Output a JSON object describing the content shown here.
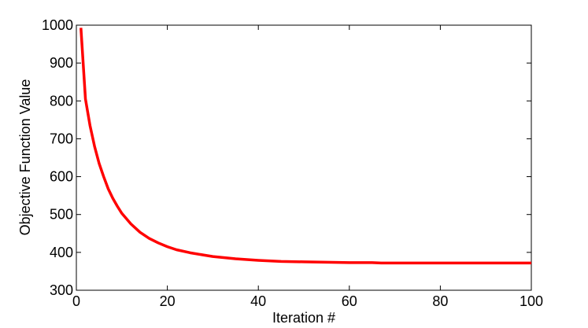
{
  "chart_data": {
    "type": "line",
    "xlabel": "Iteration #",
    "ylabel": "Objective Function Value",
    "x": [
      1,
      2,
      3,
      4,
      5,
      6,
      7,
      8,
      9,
      10,
      12,
      14,
      16,
      18,
      20,
      22,
      25,
      28,
      30,
      35,
      40,
      45,
      50,
      55,
      60,
      65,
      67,
      70,
      80,
      90,
      100
    ],
    "series": [
      {
        "color": "#ff0000",
        "values": [
          993,
          805,
          735,
          680,
          635,
          600,
          568,
          543,
          522,
          503,
          475,
          453,
          437,
          425,
          415,
          407,
          399,
          393,
          389,
          383,
          379,
          376,
          375,
          374,
          373,
          373,
          372,
          372,
          372,
          372,
          372
        ]
      }
    ],
    "xlim": [
      0,
      100
    ],
    "xticks": [
      0,
      20,
      40,
      60,
      80,
      100
    ],
    "ylim": [
      300,
      1000
    ],
    "yticks": [
      300,
      400,
      500,
      600,
      700,
      800,
      900,
      1000
    ]
  }
}
